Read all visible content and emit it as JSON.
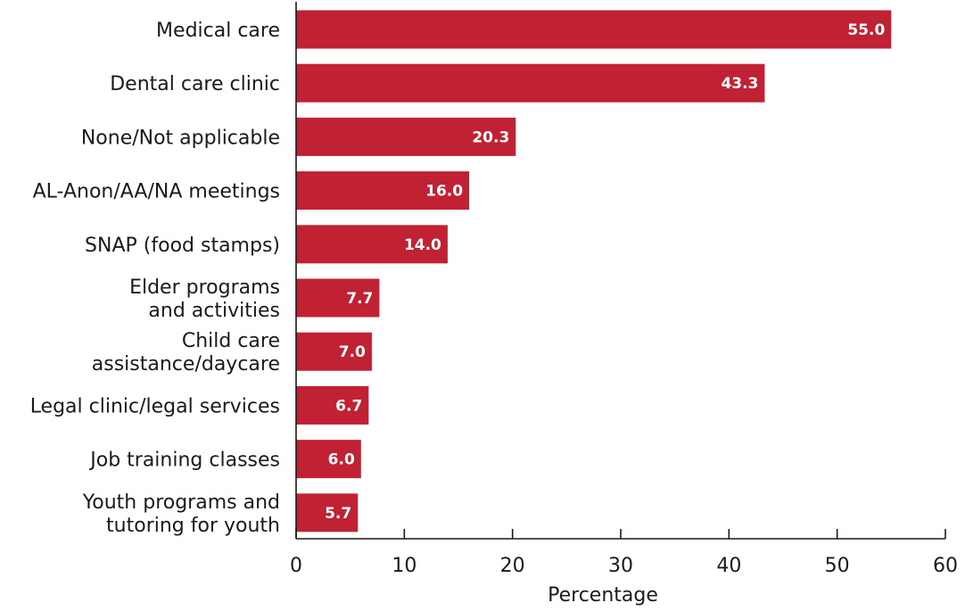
{
  "chart_data": {
    "type": "bar",
    "orientation": "horizontal",
    "title": "",
    "xlabel": "Percentage",
    "ylabel": "",
    "xlim": [
      0,
      60
    ],
    "xticks": [
      0,
      10,
      20,
      30,
      40,
      50,
      60
    ],
    "categories": [
      [
        "Medical care"
      ],
      [
        "Dental care clinic"
      ],
      [
        "None/Not applicable"
      ],
      [
        "AL-Anon/AA/NA meetings"
      ],
      [
        "SNAP (food stamps)"
      ],
      [
        "Elder programs",
        "and activities"
      ],
      [
        "Child care",
        "assistance/daycare"
      ],
      [
        "Legal clinic/legal services"
      ],
      [
        "Job training classes"
      ],
      [
        "Youth programs and",
        "tutoring for youth"
      ]
    ],
    "values": [
      55.0,
      43.3,
      20.3,
      16.0,
      14.0,
      7.7,
      7.0,
      6.7,
      6.0,
      5.7
    ],
    "value_labels": [
      "55.0",
      "43.3",
      "20.3",
      "16.0",
      "14.0",
      "7.7",
      "7.0",
      "6.7",
      "6.0",
      "5.7"
    ],
    "grid": false,
    "legend": "none"
  },
  "colors": {
    "bar": "#c02233",
    "axis": "#1a1a1a",
    "data_label": "#ffffff"
  }
}
